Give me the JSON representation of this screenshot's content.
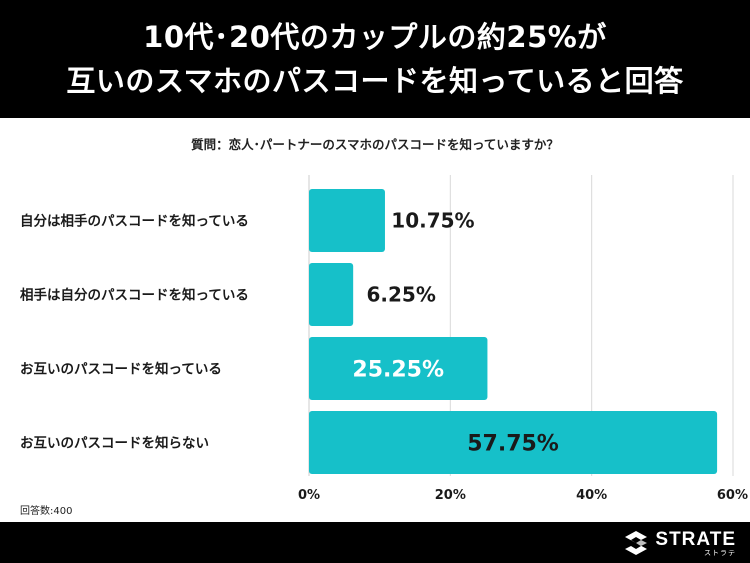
{
  "header": {
    "title_line1": "10代･20代のカップルの約25%が",
    "title_line2": "互いのスマホのパスコードを知っていると回答"
  },
  "question": "質問：恋人･パートナーのスマホのパスコードを知っていますか？",
  "sample_size": "回答数:400",
  "logo": {
    "name": "STRATE",
    "sub": "ストラテ",
    "icon": "strate-logo-icon"
  },
  "colors": {
    "bar": "#16c0c9",
    "grid": "#d9d9d9",
    "header_bg": "#000000"
  },
  "chart_data": {
    "type": "bar",
    "orientation": "horizontal",
    "title": "",
    "xlabel": "",
    "ylabel": "",
    "categories": [
      "自分は相手のパスコードを知っている",
      "相手は自分のパスコードを知っている",
      "お互いのパスコードを知っている",
      "お互いのパスコードを知らない"
    ],
    "values": [
      10.75,
      6.25,
      25.25,
      57.75
    ],
    "value_labels": [
      "10.75%",
      "6.25%",
      "25.25%",
      "57.75%"
    ],
    "xlim": [
      0,
      60
    ],
    "ticks": [
      "0%",
      "20%",
      "40%",
      "60%"
    ],
    "tick_values": [
      0,
      20,
      40,
      60
    ],
    "grid": true
  }
}
